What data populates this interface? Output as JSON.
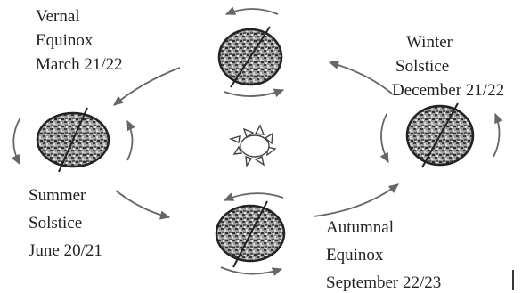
{
  "labels": {
    "vernal": [
      "Vernal",
      "Equinox",
      "March 21/22"
    ],
    "winter": [
      "Winter",
      "Solstice",
      "December 21/22"
    ],
    "summer": [
      "Summer",
      "Solstice",
      "June 20/21"
    ],
    "autumnal": [
      "Autumnal",
      "Equinox",
      "September 22/23"
    ]
  },
  "colors": {
    "arrow": "#666666",
    "outline": "#222222",
    "earth_dark": "#3a3a3a",
    "earth_mid": "#8a8a8a",
    "earth_light": "#d8d8d8"
  }
}
